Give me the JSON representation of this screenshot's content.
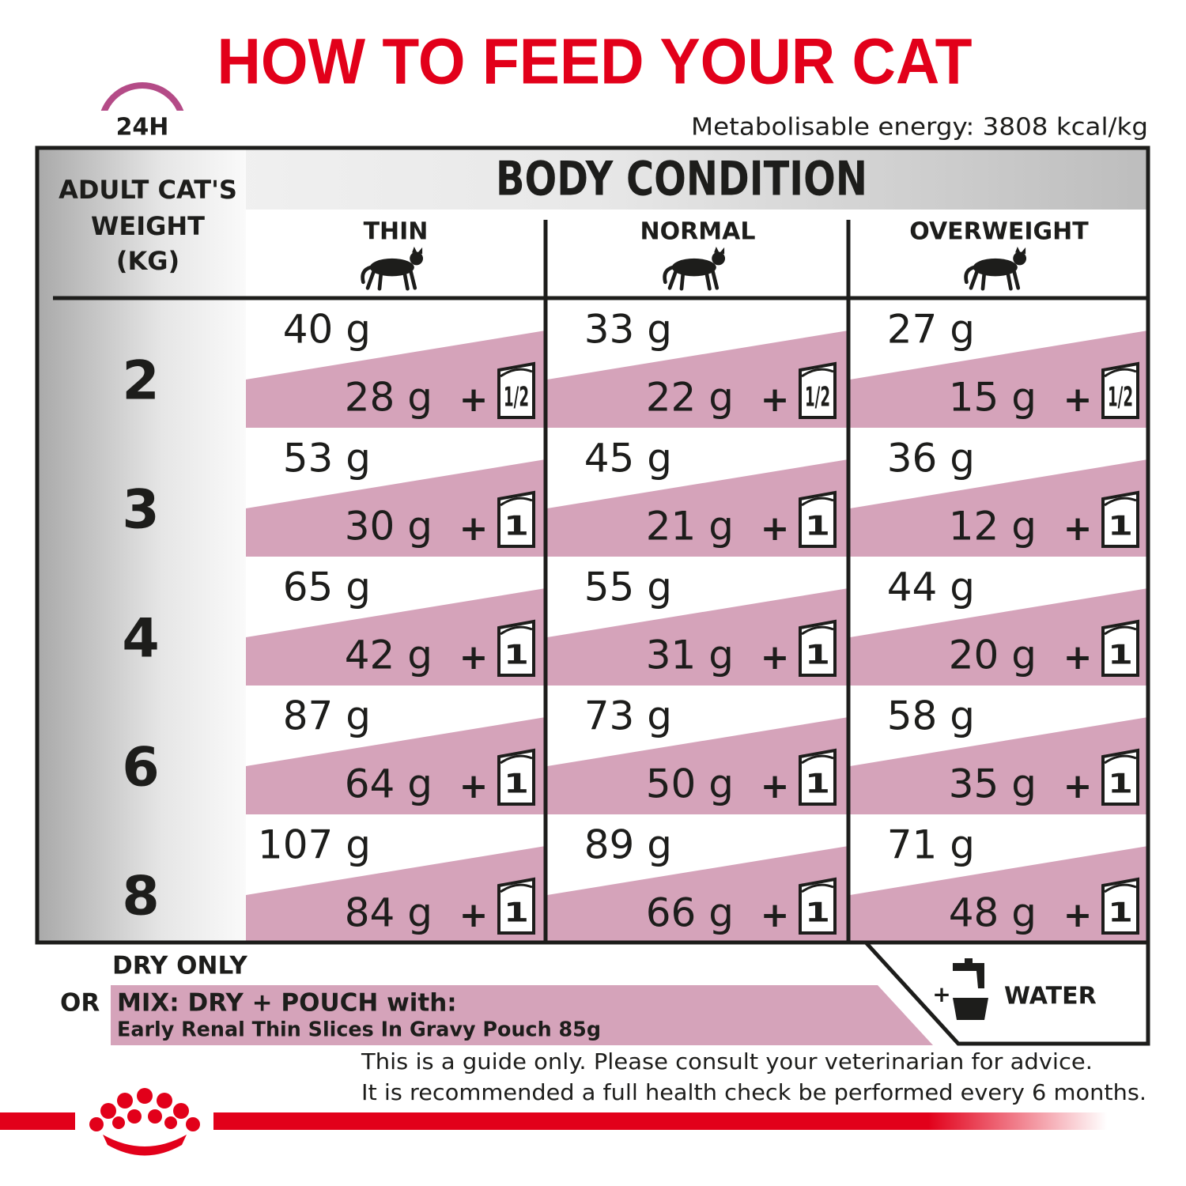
{
  "header": {
    "title": "HOW TO FEED YOUR CAT",
    "timer": "24H",
    "energy": "Metabolisable energy: 3808 kcal/kg"
  },
  "table": {
    "weight_header": [
      "ADULT CAT'S",
      "WEIGHT",
      "(KG)"
    ],
    "condition_header": "BODY CONDITION",
    "columns": [
      "THIN",
      "NORMAL",
      "OVERWEIGHT"
    ],
    "plus": "+",
    "rows": [
      {
        "weight": "2",
        "cells": [
          {
            "dry": "40 g",
            "mix": "28 g",
            "pouch": "1/2"
          },
          {
            "dry": "33 g",
            "mix": "22 g",
            "pouch": "1/2"
          },
          {
            "dry": "27 g",
            "mix": "15 g",
            "pouch": "1/2"
          }
        ]
      },
      {
        "weight": "3",
        "cells": [
          {
            "dry": "53 g",
            "mix": "30 g",
            "pouch": "1"
          },
          {
            "dry": "45 g",
            "mix": "21 g",
            "pouch": "1"
          },
          {
            "dry": "36 g",
            "mix": "12 g",
            "pouch": "1"
          }
        ]
      },
      {
        "weight": "4",
        "cells": [
          {
            "dry": "65 g",
            "mix": "42 g",
            "pouch": "1"
          },
          {
            "dry": "55 g",
            "mix": "31 g",
            "pouch": "1"
          },
          {
            "dry": "44 g",
            "mix": "20 g",
            "pouch": "1"
          }
        ]
      },
      {
        "weight": "6",
        "cells": [
          {
            "dry": "87 g",
            "mix": "64 g",
            "pouch": "1"
          },
          {
            "dry": "73 g",
            "mix": "50 g",
            "pouch": "1"
          },
          {
            "dry": "58 g",
            "mix": "35 g",
            "pouch": "1"
          }
        ]
      },
      {
        "weight": "8",
        "cells": [
          {
            "dry": "107 g",
            "mix": "84 g",
            "pouch": "1"
          },
          {
            "dry": "89 g",
            "mix": "66 g",
            "pouch": "1"
          },
          {
            "dry": "71 g",
            "mix": "48 g",
            "pouch": "1"
          }
        ]
      }
    ]
  },
  "legend": {
    "dry_only": "DRY ONLY",
    "or": "OR",
    "mix": "MIX: DRY + POUCH with:",
    "pouch_name": "Early Renal Thin Slices In Gravy Pouch 85g",
    "water_plus": "+",
    "water": "WATER"
  },
  "footer": {
    "disclaimer": [
      "This is a guide only. Please consult your veterinarian for advice.",
      "It is recommended a full health check be performed every 6 months."
    ]
  }
}
